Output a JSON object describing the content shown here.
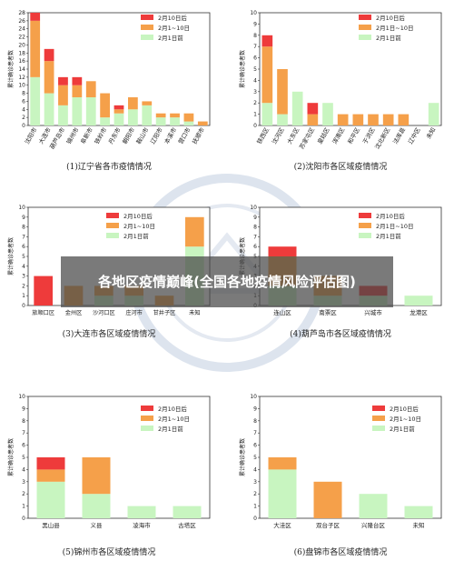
{
  "banner": {
    "title": "各地区疫情巅峰(全国各地疫情风险评估图)"
  },
  "colors": {
    "red": "#ee3b3b",
    "orange": "#f5a04a",
    "green": "#c8f5c0"
  },
  "charts": [
    {
      "caption": "(1)辽宁省各市疫情情况",
      "ylabel": "累计确诊患者数",
      "ymax": 28,
      "ystep": 2,
      "legend": [
        "2月10日后",
        "2月1~10日",
        "2月1日前"
      ],
      "categories": [
        "沈阳市",
        "大连市",
        "葫芦岛市",
        "锦州市",
        "阜新市",
        "铁岭市",
        "丹东市",
        "朝阳市",
        "鞍山市",
        "辽阳市",
        "本溪市",
        "营口市",
        "抚顺市"
      ],
      "series": [
        {
          "name": "2月1日前",
          "values": [
            12,
            8,
            5,
            7,
            7,
            2,
            3,
            4,
            5,
            2,
            2,
            1,
            0
          ]
        },
        {
          "name": "2月1~10日",
          "values": [
            14,
            8,
            5,
            3,
            4,
            6,
            1,
            3,
            1,
            1,
            1,
            2,
            1
          ]
        },
        {
          "name": "2月10日后",
          "values": [
            2,
            3,
            2,
            2,
            0,
            0,
            1,
            0,
            0,
            0,
            0,
            0,
            0
          ]
        }
      ]
    },
    {
      "caption": "(2)沈阳市各区域疫情情况",
      "ylabel": "累计确诊患者数",
      "ymax": 10,
      "ystep": 1,
      "legend": [
        "2月10日后",
        "2月1日~10日",
        "2月1日前"
      ],
      "categories": [
        "铁西区",
        "沈河区",
        "大东区",
        "苏家屯区",
        "皇姑区",
        "浑南区",
        "和平区",
        "于洪区",
        "沈北新区",
        "法库县",
        "辽中区",
        "未知"
      ],
      "series": [
        {
          "name": "2月1日前",
          "values": [
            2,
            1,
            3,
            0,
            2,
            0,
            0,
            0,
            0,
            0,
            0,
            2
          ]
        },
        {
          "name": "2月1日~10日",
          "values": [
            5,
            4,
            0,
            1,
            0,
            1,
            1,
            1,
            1,
            1,
            0,
            0
          ]
        },
        {
          "name": "2月10日后",
          "values": [
            1,
            0,
            0,
            1,
            0,
            0,
            0,
            0,
            0,
            0,
            0,
            0
          ]
        }
      ]
    },
    {
      "caption": "(3)大连市各区域疫情情况",
      "ylabel": "累计确诊患者数",
      "ymax": 10,
      "ystep": 1,
      "legend": [
        "2月10日后",
        "2月1~10日",
        "2月1日前"
      ],
      "categories": [
        "旅顺口区",
        "金州区",
        "沙河口区",
        "庄河市",
        "甘井子区",
        "未知"
      ],
      "series": [
        {
          "name": "2月1日前",
          "values": [
            0,
            0,
            1,
            1,
            0,
            6
          ]
        },
        {
          "name": "2月1~10日",
          "values": [
            0,
            2,
            1,
            1,
            1,
            3
          ]
        },
        {
          "name": "2月10日后",
          "values": [
            3,
            0,
            0,
            0,
            0,
            0
          ]
        }
      ]
    },
    {
      "caption": "(4)葫芦岛市各区域疫情情况",
      "ylabel": "累计确诊患者数",
      "ymax": 10,
      "ystep": 1,
      "legend": [
        "2月10日后",
        "2月1日~10日",
        "2月1日前"
      ],
      "categories": [
        "连山区",
        "南票区",
        "兴城市",
        "龙港区"
      ],
      "series": [
        {
          "name": "2月1日前",
          "values": [
            2,
            1,
            1,
            1
          ]
        },
        {
          "name": "2月1日~10日",
          "values": [
            3,
            2,
            0,
            0
          ]
        },
        {
          "name": "2月10日后",
          "values": [
            1,
            0,
            1,
            0
          ]
        }
      ]
    },
    {
      "caption": "(5)锦州市各区域疫情情况",
      "ylabel": "累计确诊患者数",
      "ymax": 10,
      "ystep": 1,
      "legend": [
        "2月10日后",
        "2月1~10日",
        "2月1日前"
      ],
      "categories": [
        "黑山县",
        "义县",
        "凌海市",
        "古塔区"
      ],
      "series": [
        {
          "name": "2月1日前",
          "values": [
            3,
            2,
            1,
            1
          ]
        },
        {
          "name": "2月1~10日",
          "values": [
            1,
            3,
            0,
            0
          ]
        },
        {
          "name": "2月10日后",
          "values": [
            1,
            0,
            0,
            0
          ]
        }
      ]
    },
    {
      "caption": "(6)盘锦市各区域疫情情况",
      "ylabel": "累计确诊患者数",
      "ymax": 10,
      "ystep": 1,
      "legend": [
        "2月10日后",
        "2月1~10日",
        "2月1日前"
      ],
      "categories": [
        "大洼区",
        "双台子区",
        "兴隆台区",
        "未知"
      ],
      "series": [
        {
          "name": "2月1日前",
          "values": [
            4,
            0,
            2,
            1
          ]
        },
        {
          "name": "2月1~10日",
          "values": [
            1,
            3,
            0,
            0
          ]
        },
        {
          "name": "2月10日后",
          "values": [
            0,
            0,
            0,
            0
          ]
        }
      ]
    }
  ],
  "chart_data": [
    {
      "type": "bar",
      "title": "(1)辽宁省各市疫情情况",
      "ylabel": "累计确诊患者数",
      "ylim": [
        0,
        28
      ],
      "legend_position": "top-right",
      "categories": [
        "沈阳市",
        "大连市",
        "葫芦岛市",
        "锦州市",
        "阜新市",
        "铁岭市",
        "丹东市",
        "朝阳市",
        "鞍山市",
        "辽阳市",
        "本溪市",
        "营口市",
        "抚顺市"
      ],
      "series": [
        {
          "name": "2月1日前",
          "values": [
            12,
            8,
            5,
            7,
            7,
            2,
            3,
            4,
            5,
            2,
            2,
            1,
            0
          ]
        },
        {
          "name": "2月1~10日",
          "values": [
            14,
            8,
            5,
            3,
            4,
            6,
            1,
            3,
            1,
            1,
            1,
            2,
            1
          ]
        },
        {
          "name": "2月10日后",
          "values": [
            2,
            3,
            2,
            2,
            0,
            0,
            1,
            0,
            0,
            0,
            0,
            0,
            0
          ]
        }
      ]
    },
    {
      "type": "bar",
      "title": "(2)沈阳市各区域疫情情况",
      "ylabel": "累计确诊患者数",
      "ylim": [
        0,
        10
      ],
      "legend_position": "top-right",
      "categories": [
        "铁西区",
        "沈河区",
        "大东区",
        "苏家屯区",
        "皇姑区",
        "浑南区",
        "和平区",
        "于洪区",
        "沈北新区",
        "法库县",
        "辽中区",
        "未知"
      ],
      "series": [
        {
          "name": "2月1日前",
          "values": [
            2,
            1,
            3,
            0,
            2,
            0,
            0,
            0,
            0,
            0,
            0,
            2
          ]
        },
        {
          "name": "2月1日~10日",
          "values": [
            5,
            4,
            0,
            1,
            0,
            1,
            1,
            1,
            1,
            1,
            0,
            0
          ]
        },
        {
          "name": "2月10日后",
          "values": [
            1,
            0,
            0,
            1,
            0,
            0,
            0,
            0,
            0,
            0,
            0,
            0
          ]
        }
      ]
    },
    {
      "type": "bar",
      "title": "(3)大连市各区域疫情情况",
      "ylabel": "累计确诊患者数",
      "ylim": [
        0,
        10
      ],
      "legend_position": "top-right",
      "categories": [
        "旅顺口区",
        "金州区",
        "沙河口区",
        "庄河市",
        "甘井子区",
        "未知"
      ],
      "series": [
        {
          "name": "2月1日前",
          "values": [
            0,
            0,
            1,
            1,
            0,
            6
          ]
        },
        {
          "name": "2月1~10日",
          "values": [
            0,
            2,
            1,
            1,
            1,
            3
          ]
        },
        {
          "name": "2月10日后",
          "values": [
            3,
            0,
            0,
            0,
            0,
            0
          ]
        }
      ]
    },
    {
      "type": "bar",
      "title": "(4)葫芦岛市各区域疫情情况",
      "ylabel": "累计确诊患者数",
      "ylim": [
        0,
        10
      ],
      "legend_position": "top-right",
      "categories": [
        "连山区",
        "南票区",
        "兴城市",
        "龙港区"
      ],
      "series": [
        {
          "name": "2月1日前",
          "values": [
            2,
            1,
            1,
            1
          ]
        },
        {
          "name": "2月1日~10日",
          "values": [
            3,
            2,
            0,
            0
          ]
        },
        {
          "name": "2月10日后",
          "values": [
            1,
            0,
            1,
            0
          ]
        }
      ]
    },
    {
      "type": "bar",
      "title": "(5)锦州市各区域疫情情况",
      "ylabel": "累计确诊患者数",
      "ylim": [
        0,
        10
      ],
      "legend_position": "top-right",
      "categories": [
        "黑山县",
        "义县",
        "凌海市",
        "古塔区"
      ],
      "series": [
        {
          "name": "2月1日前",
          "values": [
            3,
            2,
            1,
            1
          ]
        },
        {
          "name": "2月1~10日",
          "values": [
            1,
            3,
            0,
            0
          ]
        },
        {
          "name": "2月10日后",
          "values": [
            1,
            0,
            0,
            0
          ]
        }
      ]
    },
    {
      "type": "bar",
      "title": "(6)盘锦市各区域疫情情况",
      "ylabel": "累计确诊患者数",
      "ylim": [
        0,
        10
      ],
      "legend_position": "top-right",
      "categories": [
        "大洼区",
        "双台子区",
        "兴隆台区",
        "未知"
      ],
      "series": [
        {
          "name": "2月1日前",
          "values": [
            4,
            0,
            2,
            1
          ]
        },
        {
          "name": "2月1~10日",
          "values": [
            1,
            3,
            0,
            0
          ]
        },
        {
          "name": "2月10日后",
          "values": [
            0,
            0,
            0,
            0
          ]
        }
      ]
    }
  ]
}
